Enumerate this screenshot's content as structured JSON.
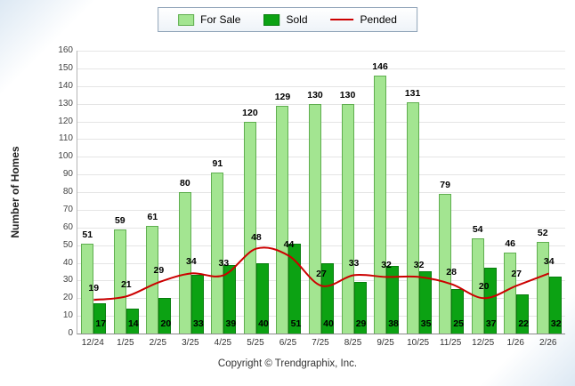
{
  "chart_data": {
    "type": "bar",
    "title": "",
    "ylabel": "Number of Homes",
    "xlabel": "",
    "ylim": [
      0,
      160
    ],
    "ytick_step": 10,
    "grid": true,
    "legend_position": "top",
    "categories": [
      "12/24",
      "1/25",
      "2/25",
      "3/25",
      "4/25",
      "5/25",
      "6/25",
      "7/25",
      "8/25",
      "9/25",
      "10/25",
      "11/25",
      "12/25",
      "1/26",
      "2/26"
    ],
    "series": [
      {
        "name": "For Sale",
        "type": "bar",
        "color": "#A3E591",
        "border_color": "#5FAE4F",
        "values": [
          51,
          59,
          61,
          80,
          91,
          120,
          129,
          130,
          130,
          146,
          131,
          79,
          54,
          46,
          52
        ]
      },
      {
        "name": "Sold",
        "type": "bar",
        "color": "#0CA213",
        "border_color": "#077D0D",
        "values": [
          17,
          14,
          20,
          33,
          39,
          40,
          51,
          40,
          29,
          38,
          35,
          25,
          37,
          22,
          32
        ]
      },
      {
        "name": "Pended",
        "type": "line",
        "color": "#CC0000",
        "values": [
          19,
          21,
          29,
          34,
          33,
          48,
          44,
          27,
          33,
          32,
          32,
          28,
          20,
          27,
          34
        ]
      }
    ]
  },
  "footer": {
    "copyright": "Copyright © Trendgraphix, Inc."
  }
}
